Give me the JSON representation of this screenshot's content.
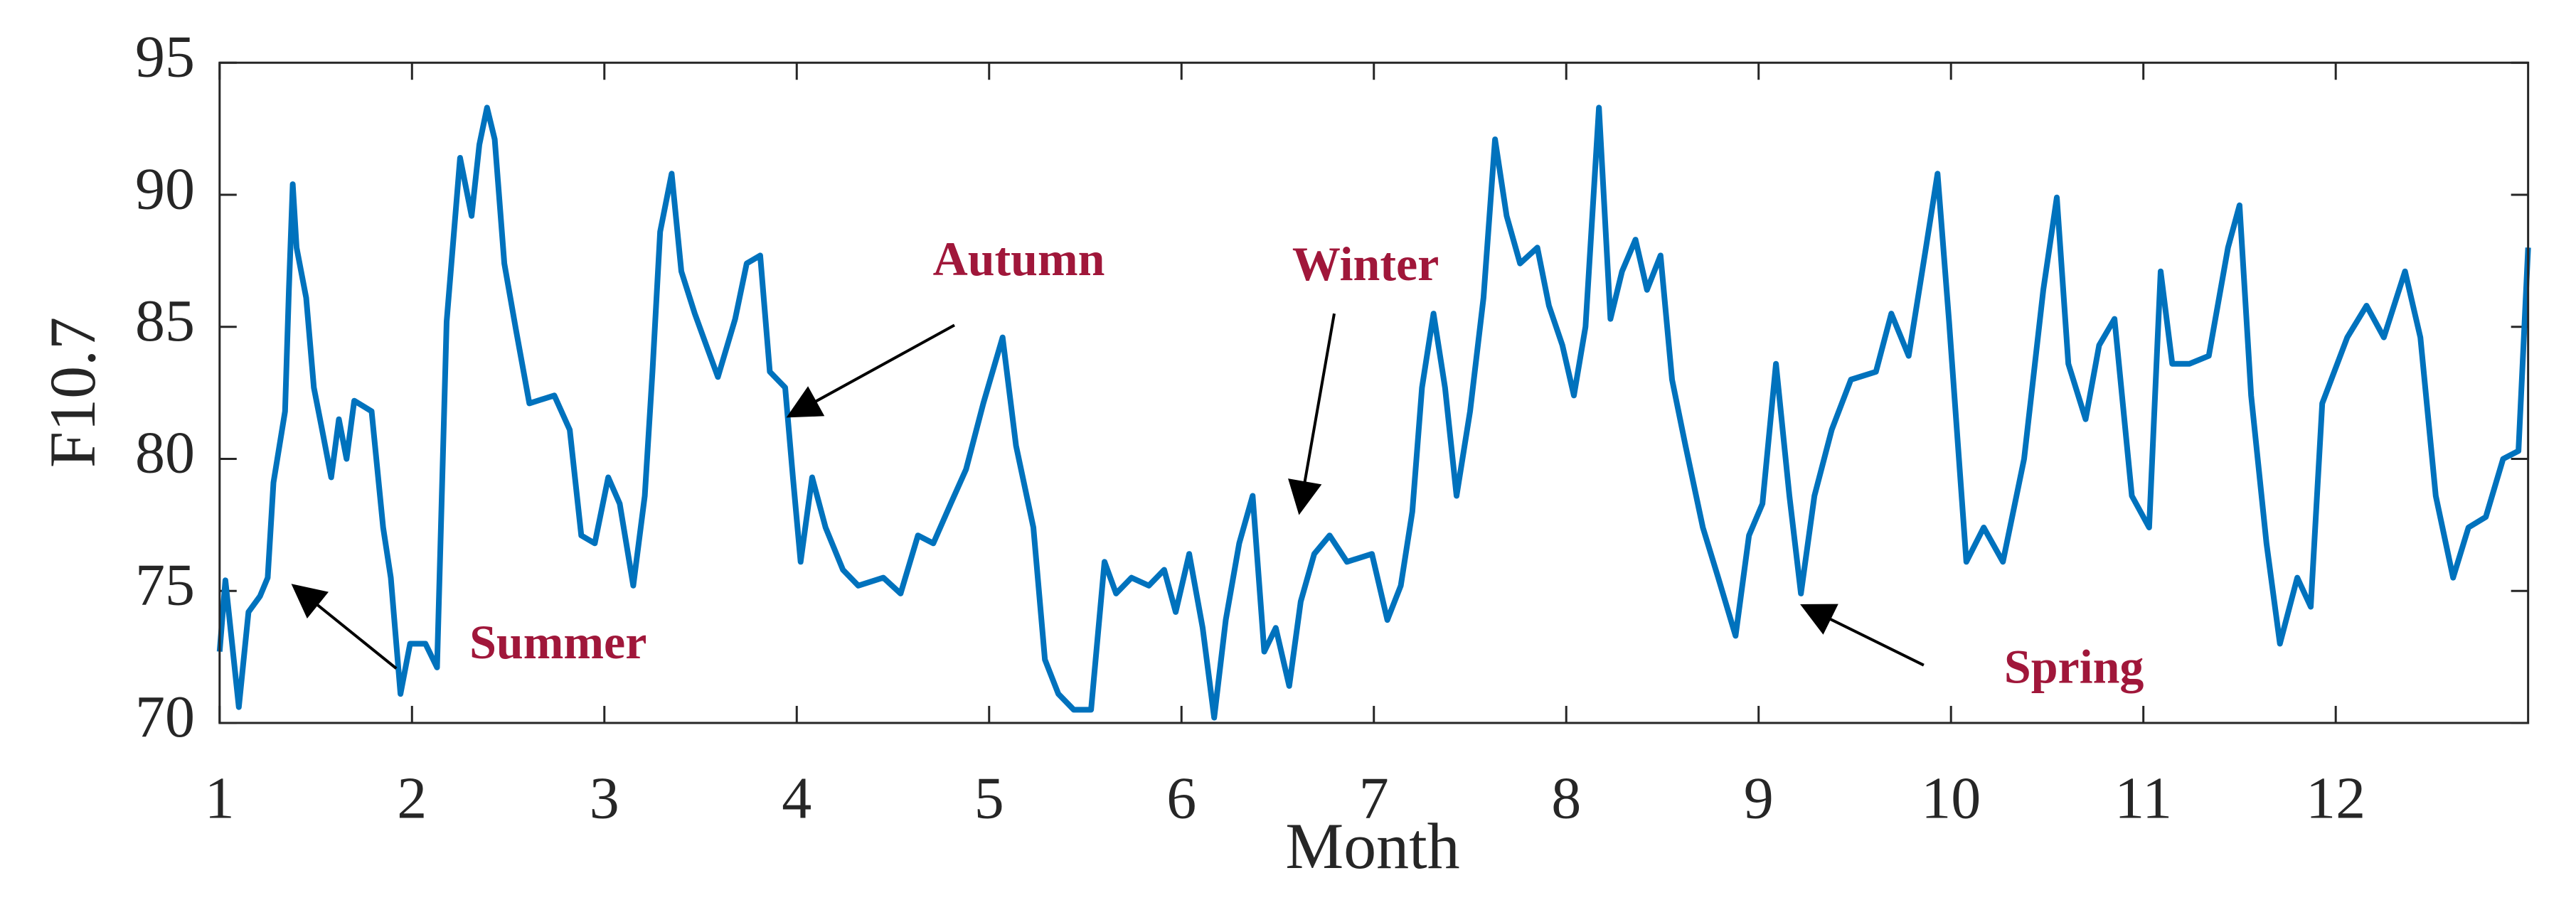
{
  "chart_data": {
    "type": "line",
    "xlabel": "Month",
    "ylabel": "F10.7",
    "xlim": [
      1,
      13
    ],
    "ylim": [
      70,
      95
    ],
    "xticks": [
      1,
      2,
      3,
      4,
      5,
      6,
      7,
      8,
      9,
      10,
      11,
      12
    ],
    "yticks": [
      70,
      75,
      80,
      85,
      90,
      95
    ],
    "color": "#0072bd",
    "x": [
      1.0,
      1.03,
      1.1,
      1.15,
      1.21,
      1.25,
      1.28,
      1.34,
      1.36,
      1.38,
      1.4,
      1.45,
      1.49,
      1.53,
      1.58,
      1.62,
      1.66,
      1.7,
      1.79,
      1.85,
      1.89,
      1.94,
      1.99,
      2.07,
      2.13,
      2.18,
      2.25,
      2.31,
      2.35,
      2.39,
      2.43,
      2.48,
      2.54,
      2.61,
      2.74,
      2.82,
      2.88,
      2.95,
      3.02,
      3.08,
      3.15,
      3.21,
      3.25,
      3.29,
      3.35,
      3.4,
      3.47,
      3.53,
      3.59,
      3.68,
      3.74,
      3.81,
      3.86,
      3.94,
      3.98,
      4.02,
      4.08,
      4.15,
      4.24,
      4.32,
      4.45,
      4.54,
      4.63,
      4.71,
      4.8,
      4.88,
      4.97,
      5.07,
      5.14,
      5.23,
      5.29,
      5.36,
      5.44,
      5.53,
      5.6,
      5.66,
      5.74,
      5.83,
      5.91,
      5.97,
      6.04,
      6.11,
      6.17,
      6.23,
      6.3,
      6.37,
      6.43,
      6.49,
      6.56,
      6.62,
      6.69,
      6.77,
      6.86,
      6.99,
      7.07,
      7.14,
      7.2,
      7.25,
      7.31,
      7.37,
      7.43,
      7.5,
      7.57,
      7.63,
      7.69,
      7.76,
      7.85,
      7.91,
      7.98,
      8.04,
      8.1,
      8.17,
      8.23,
      8.29,
      8.36,
      8.42,
      8.49,
      8.55,
      8.62,
      8.71,
      8.79,
      8.88,
      8.95,
      9.02,
      9.09,
      9.16,
      9.22,
      9.29,
      9.38,
      9.48,
      9.61,
      9.69,
      9.78,
      9.87,
      9.93,
      9.99,
      10.08,
      10.17,
      10.27,
      10.38,
      10.48,
      10.55,
      10.61,
      10.7,
      10.77,
      10.85,
      10.94,
      11.03,
      11.09,
      11.15,
      11.24,
      11.34,
      11.44,
      11.5,
      11.56,
      11.64,
      11.71,
      11.8,
      11.87,
      11.93,
      12.06,
      12.16,
      12.25,
      12.36,
      12.44,
      12.52,
      12.61,
      12.69,
      12.78,
      12.87,
      12.95,
      13.0
    ],
    "values": [
      72.7,
      75.4,
      70.6,
      74.2,
      74.8,
      75.5,
      79.1,
      81.8,
      86.4,
      90.4,
      88,
      86.1,
      82.7,
      81.2,
      79.3,
      81.5,
      80,
      82.2,
      81.8,
      77.4,
      75.5,
      71.1,
      73,
      73,
      72.1,
      85.2,
      91.4,
      89.2,
      91.9,
      93.3,
      92.1,
      87.4,
      84.9,
      82.1,
      82.4,
      81.1,
      77.1,
      76.8,
      79.3,
      78.3,
      75.2,
      78.6,
      83.3,
      88.6,
      90.8,
      87.1,
      85.5,
      84.3,
      83.1,
      85.3,
      87.4,
      87.7,
      83.3,
      82.7,
      79.3,
      76.1,
      79.3,
      77.4,
      75.8,
      75.2,
      75.5,
      74.9,
      77.1,
      76.8,
      78.3,
      79.6,
      82.1,
      84.6,
      80.5,
      77.4,
      72.4,
      71.1,
      70.5,
      70.5,
      76.1,
      74.9,
      75.5,
      75.2,
      75.8,
      74.2,
      76.4,
      73.6,
      70.2,
      73.9,
      76.8,
      78.6,
      72.7,
      73.6,
      71.4,
      74.6,
      76.4,
      77.1,
      76.1,
      76.4,
      73.9,
      75.2,
      78,
      82.7,
      85.5,
      82.7,
      78.6,
      81.8,
      86.1,
      92.1,
      89.2,
      87.4,
      88,
      85.8,
      84.3,
      82.4,
      85,
      93.3,
      85.3,
      87.1,
      88.3,
      86.4,
      87.7,
      83,
      80.5,
      77.4,
      75.5,
      73.3,
      77.1,
      78.3,
      83.6,
      78.6,
      74.9,
      78.6,
      81.1,
      83,
      83.3,
      85.5,
      83.9,
      88,
      90.8,
      85.2,
      76.1,
      77.4,
      76.1,
      80,
      86.4,
      89.9,
      83.6,
      81.5,
      84.3,
      85.3,
      78.6,
      77.4,
      87.1,
      83.6,
      83.6,
      83.9,
      88,
      89.6,
      82.4,
      76.8,
      73,
      75.5,
      74.4,
      82.1,
      84.6,
      85.8,
      84.6,
      87.1,
      84.6,
      78.6,
      75.5,
      77.4,
      77.8,
      80,
      80.3,
      88
    ],
    "annotations": [
      "Summer",
      "Autumn",
      "Winter",
      "Spring"
    ]
  }
}
